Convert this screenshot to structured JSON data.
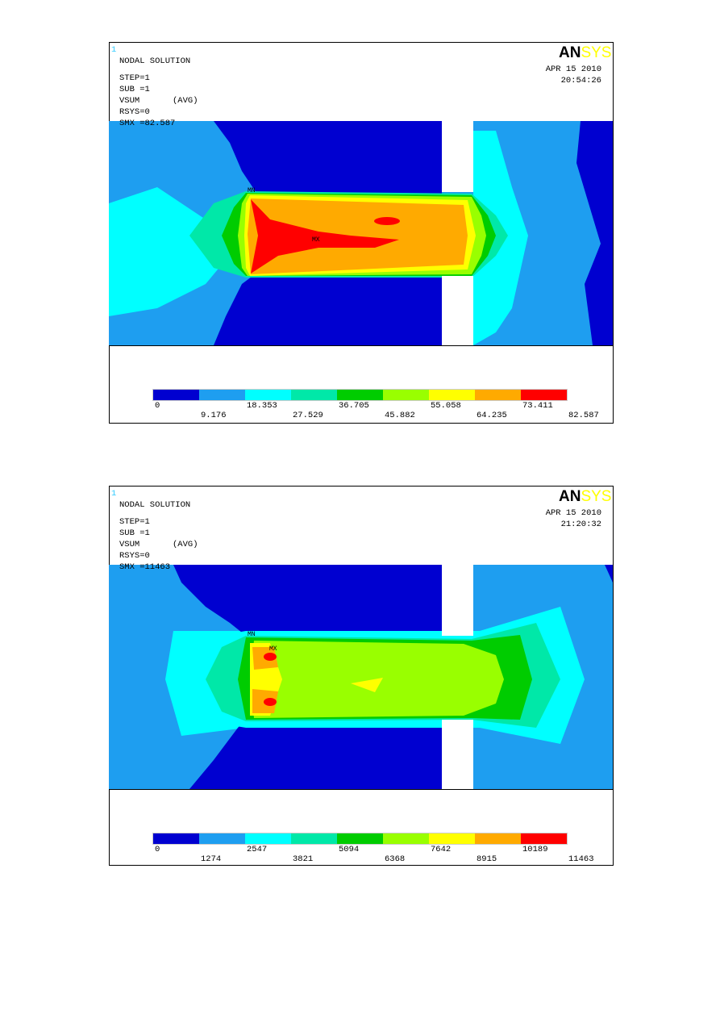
{
  "legend_colors": [
    "#0000d0",
    "#1e9ef0",
    "#00ffff",
    "#00e8a8",
    "#00cc00",
    "#99ff00",
    "#ffff00",
    "#ffaa00",
    "#ff0000"
  ],
  "panels": [
    {
      "window": "1",
      "title": "NODAL SOLUTION",
      "step": "STEP=1",
      "sub": "SUB =1",
      "item": "VSUM",
      "avg": "(AVG)",
      "rsys": "RSYS=0",
      "smx": "SMX =82.587",
      "logo_a": "AN",
      "logo_b": "SYS",
      "date": "APR 15 2010",
      "time": "20:54:26",
      "mn": "MN",
      "mx": "MX",
      "legend": [
        "0",
        "9.176",
        "18.353",
        "27.529",
        "36.705",
        "45.882",
        "55.058",
        "64.235",
        "73.411",
        "82.587"
      ]
    },
    {
      "window": "1",
      "title": "NODAL SOLUTION",
      "step": "STEP=1",
      "sub": "SUB =1",
      "item": "VSUM",
      "avg": "(AVG)",
      "rsys": "RSYS=0",
      "smx": "SMX =11463",
      "logo_a": "AN",
      "logo_b": "SYS",
      "date": "APR 15 2010",
      "time": "21:20:32",
      "mn": "MN",
      "mx": "MX",
      "legend": [
        "0",
        "1274",
        "2547",
        "3821",
        "5094",
        "6368",
        "7642",
        "8915",
        "10189",
        "11463"
      ]
    }
  ]
}
